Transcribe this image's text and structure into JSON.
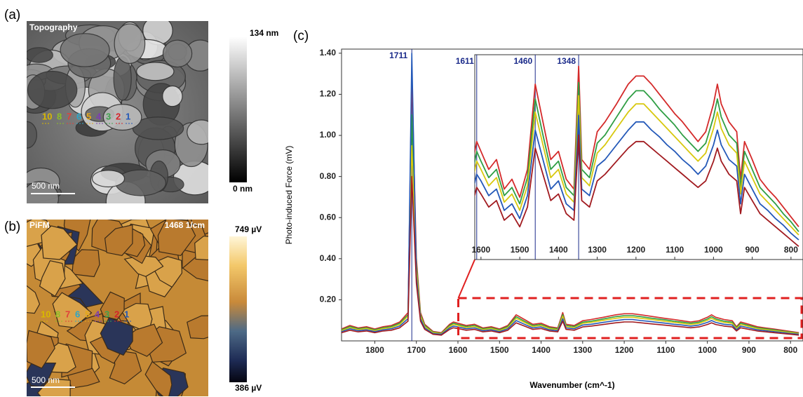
{
  "panels": {
    "a": {
      "label": "(a)",
      "title": "Topography",
      "scale_bar": "500 nm",
      "colorbar_max": "134 nm",
      "colorbar_min": "0 nm",
      "markers": [
        {
          "label": "10",
          "color": "#d9b800"
        },
        {
          "label": "8",
          "color": "#8cbf26"
        },
        {
          "label": "7",
          "color": "#e0403a"
        },
        {
          "label": "6",
          "color": "#2aa6c9"
        },
        {
          "label": "5",
          "color": "#e6a817"
        },
        {
          "label": "4",
          "color": "#7d3fb0"
        },
        {
          "label": "3",
          "color": "#3fa34d"
        },
        {
          "label": "2",
          "color": "#d6232a"
        },
        {
          "label": "1",
          "color": "#2358b8"
        }
      ]
    },
    "b": {
      "label": "(b)",
      "title": "PiFM",
      "wavenumber": "1468 1/cm",
      "scale_bar": "500 nm",
      "colorbar_max": "749 µV",
      "colorbar_min": "386 µV",
      "markers": [
        {
          "label": "10",
          "color": "#d9b800"
        },
        {
          "label": "8",
          "color": "#8cbf26"
        },
        {
          "label": "7",
          "color": "#e0403a"
        },
        {
          "label": "6",
          "color": "#2aa6c9"
        },
        {
          "label": "5",
          "color": "#e6a817"
        },
        {
          "label": "4",
          "color": "#7d3fb0"
        },
        {
          "label": "3",
          "color": "#3fa34d"
        },
        {
          "label": "2",
          "color": "#d6232a"
        },
        {
          "label": "1",
          "color": "#2358b8"
        }
      ]
    }
  },
  "chart_data": {
    "type": "line",
    "panel_label": "(c)",
    "x_label": "Wavenumber (cm^-1)",
    "y_label": "Photo-induced Force (mV)",
    "x": [
      1880,
      1860,
      1840,
      1820,
      1800,
      1780,
      1760,
      1740,
      1720,
      1711,
      1700,
      1690,
      1680,
      1660,
      1640,
      1620,
      1611,
      1600,
      1580,
      1560,
      1540,
      1520,
      1500,
      1480,
      1460,
      1440,
      1420,
      1400,
      1380,
      1360,
      1348,
      1340,
      1320,
      1300,
      1280,
      1250,
      1220,
      1200,
      1180,
      1160,
      1140,
      1120,
      1100,
      1080,
      1060,
      1040,
      1020,
      1000,
      990,
      980,
      960,
      940,
      930,
      920,
      900,
      880,
      860,
      840,
      820,
      800,
      780
    ],
    "xlim": [
      1880,
      770
    ],
    "xticks": [
      1800,
      1700,
      1600,
      1500,
      1400,
      1300,
      1200,
      1100,
      1000,
      900,
      800
    ],
    "ylim": [
      0,
      1.42
    ],
    "yticks": [
      {
        "value": 0.2,
        "label": "0.20"
      },
      {
        "value": 0.4,
        "label": "0.40"
      },
      {
        "value": 0.6,
        "label": "0.60"
      },
      {
        "value": 0.8,
        "label": "0.80"
      },
      {
        "value": 1.0,
        "label": "1.00"
      },
      {
        "value": 1.2,
        "label": "1.20"
      },
      {
        "value": 1.4,
        "label": "1.40"
      }
    ],
    "annotations": [
      1711
    ],
    "series": [
      {
        "color": "#d42a2a",
        "values": [
          0.058,
          0.075,
          0.063,
          0.069,
          0.058,
          0.069,
          0.075,
          0.092,
          0.138,
          1.3,
          0.403,
          0.138,
          0.081,
          0.046,
          0.04,
          0.081,
          0.092,
          0.086,
          0.075,
          0.081,
          0.063,
          0.069,
          0.058,
          0.075,
          0.127,
          0.104,
          0.081,
          0.086,
          0.069,
          0.063,
          0.138,
          0.081,
          0.075,
          0.098,
          0.104,
          0.115,
          0.127,
          0.132,
          0.132,
          0.127,
          0.121,
          0.115,
          0.109,
          0.104,
          0.098,
          0.092,
          0.098,
          0.115,
          0.127,
          0.115,
          0.104,
          0.098,
          0.069,
          0.092,
          0.081,
          0.069,
          0.063,
          0.058,
          0.052,
          0.046,
          0.04
        ]
      },
      {
        "color": "#2f9e44",
        "values": [
          0.054,
          0.07,
          0.059,
          0.064,
          0.054,
          0.064,
          0.07,
          0.086,
          0.128,
          1.1,
          0.375,
          0.128,
          0.075,
          0.043,
          0.037,
          0.075,
          0.086,
          0.08,
          0.07,
          0.075,
          0.059,
          0.064,
          0.054,
          0.07,
          0.118,
          0.096,
          0.075,
          0.08,
          0.064,
          0.059,
          0.128,
          0.075,
          0.07,
          0.091,
          0.096,
          0.107,
          0.118,
          0.123,
          0.123,
          0.118,
          0.112,
          0.107,
          0.102,
          0.096,
          0.091,
          0.086,
          0.091,
          0.107,
          0.118,
          0.107,
          0.096,
          0.091,
          0.064,
          0.086,
          0.075,
          0.064,
          0.059,
          0.054,
          0.048,
          0.043,
          0.037
        ]
      },
      {
        "color": "#d8c80e",
        "values": [
          0.05,
          0.065,
          0.055,
          0.06,
          0.05,
          0.06,
          0.065,
          0.08,
          0.12,
          0.95,
          0.35,
          0.12,
          0.07,
          0.04,
          0.035,
          0.07,
          0.08,
          0.075,
          0.065,
          0.07,
          0.055,
          0.06,
          0.05,
          0.065,
          0.11,
          0.09,
          0.07,
          0.075,
          0.06,
          0.055,
          0.12,
          0.07,
          0.065,
          0.085,
          0.09,
          0.1,
          0.11,
          0.115,
          0.115,
          0.11,
          0.105,
          0.1,
          0.095,
          0.09,
          0.085,
          0.08,
          0.085,
          0.1,
          0.11,
          0.1,
          0.09,
          0.085,
          0.06,
          0.08,
          0.07,
          0.06,
          0.055,
          0.05,
          0.045,
          0.04,
          0.035
        ]
      },
      {
        "color": "#2358b8",
        "values": [
          0.045,
          0.059,
          0.05,
          0.054,
          0.045,
          0.054,
          0.059,
          0.072,
          0.108,
          1.4,
          0.315,
          0.108,
          0.063,
          0.036,
          0.032,
          0.063,
          0.072,
          0.068,
          0.059,
          0.063,
          0.05,
          0.054,
          0.045,
          0.059,
          0.099,
          0.081,
          0.063,
          0.068,
          0.054,
          0.05,
          0.108,
          0.063,
          0.059,
          0.077,
          0.081,
          0.09,
          0.099,
          0.104,
          0.104,
          0.099,
          0.095,
          0.09,
          0.086,
          0.081,
          0.077,
          0.072,
          0.077,
          0.09,
          0.099,
          0.09,
          0.081,
          0.077,
          0.054,
          0.072,
          0.063,
          0.054,
          0.05,
          0.045,
          0.041,
          0.036,
          0.032
        ]
      },
      {
        "color": "#a11a1f",
        "values": [
          0.04,
          0.052,
          0.044,
          0.048,
          0.04,
          0.048,
          0.052,
          0.064,
          0.096,
          0.8,
          0.28,
          0.096,
          0.056,
          0.032,
          0.028,
          0.056,
          0.064,
          0.06,
          0.052,
          0.056,
          0.044,
          0.048,
          0.04,
          0.052,
          0.088,
          0.072,
          0.056,
          0.06,
          0.048,
          0.044,
          0.096,
          0.056,
          0.052,
          0.068,
          0.072,
          0.08,
          0.088,
          0.092,
          0.092,
          0.088,
          0.084,
          0.08,
          0.076,
          0.072,
          0.068,
          0.064,
          0.068,
          0.08,
          0.088,
          0.08,
          0.072,
          0.068,
          0.048,
          0.064,
          0.056,
          0.048,
          0.044,
          0.04,
          0.036,
          0.032,
          0.028
        ]
      }
    ],
    "inset": {
      "xlim": [
        1616,
        769
      ],
      "xticks": [
        1600,
        1500,
        1400,
        1300,
        1200,
        1100,
        1000,
        900,
        800
      ],
      "ylim": [
        0.02,
        0.145
      ],
      "annotations": [
        1611,
        1460,
        1348
      ]
    }
  }
}
